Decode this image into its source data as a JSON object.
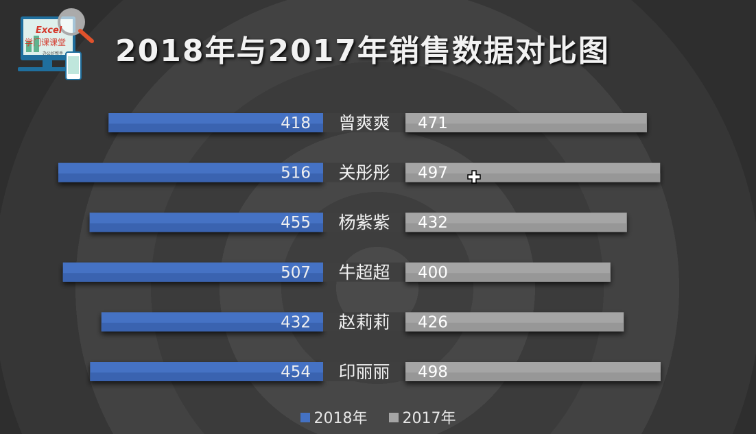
{
  "title": "2018年与2017年销售数据对比图",
  "logo": {
    "top_text": "Excel",
    "middle_text": "学门课课堂",
    "bottom_text": "办公好帮手"
  },
  "colors": {
    "series_2018": "#4472c4",
    "series_2017": "#a5a5a5",
    "label_bg": "#3f3f3f"
  },
  "chart_data": {
    "type": "bar",
    "orientation": "horizontal-butterfly",
    "categories": [
      "曾爽爽",
      "关彤彤",
      "杨紫紫",
      "牛超超",
      "赵莉莉",
      "印丽丽"
    ],
    "series": [
      {
        "name": "2018年",
        "values": [
          418,
          516,
          455,
          507,
          432,
          454
        ],
        "side": "left"
      },
      {
        "name": "2017年",
        "values": [
          471,
          497,
          432,
          400,
          426,
          498
        ],
        "side": "right"
      }
    ],
    "legend": "bottom"
  }
}
